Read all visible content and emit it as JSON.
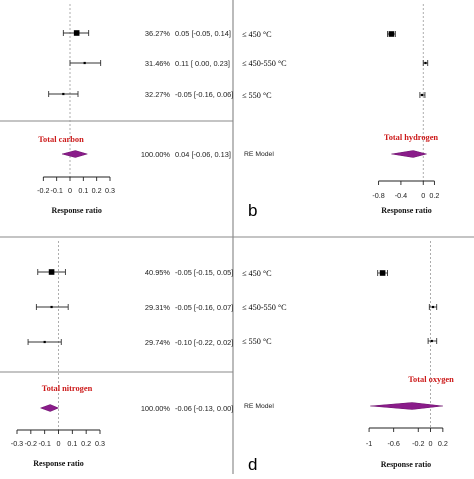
{
  "chart_data": [
    {
      "type": "forest",
      "panel_letter": "",
      "xlim": [
        -0.3,
        0.3
      ],
      "ticks": [
        "-0.2",
        "-0.1",
        "0",
        "0.1",
        "0.2",
        "0.3"
      ],
      "tick_values": [
        -0.2,
        -0.1,
        0,
        0.1,
        0.2,
        0.3
      ],
      "xlabel": "Response ratio",
      "summary_label": "Total carbon",
      "studies": [
        {
          "label": "",
          "est": 0.05,
          "lo": -0.05,
          "hi": 0.14,
          "weight": "36.27%",
          "ci": "0.05 [-0.05, 0.14]"
        },
        {
          "label": "",
          "est": 0.11,
          "lo": 0.0,
          "hi": 0.23,
          "weight": "31.46%",
          "ci": "0.11 [ 0.00, 0.23]"
        },
        {
          "label": "",
          "est": -0.05,
          "lo": -0.16,
          "hi": 0.06,
          "weight": "32.27%",
          "ci": "-0.05 [-0.16, 0.06]"
        }
      ],
      "summary": {
        "label": "",
        "est": 0.04,
        "lo": -0.06,
        "hi": 0.13,
        "weight": "100.00%",
        "ci": "0.04 [-0.06, 0.13]"
      }
    },
    {
      "type": "forest",
      "panel_letter": "b",
      "xlim": [
        -0.9,
        0.3
      ],
      "ticks": [
        "-0.8",
        "-0.4",
        "0",
        "0.2"
      ],
      "tick_values": [
        -0.8,
        -0.4,
        0,
        0.2
      ],
      "xlabel": "Response ratio",
      "summary_label": "Total hydrogen",
      "studies": [
        {
          "label": "≤ 450 °C",
          "est": -0.57,
          "lo": -0.64,
          "hi": -0.5,
          "weight": "",
          "ci": ""
        },
        {
          "label": "≤ 450-550 °C",
          "est": 0.04,
          "lo": 0.0,
          "hi": 0.08,
          "weight": "",
          "ci": ""
        },
        {
          "label": "≤ 550 °C",
          "est": -0.02,
          "lo": -0.06,
          "hi": 0.03,
          "weight": "",
          "ci": ""
        }
      ],
      "summary": {
        "label": "RE Model",
        "est": -0.18,
        "lo": -0.57,
        "hi": 0.06,
        "weight": "",
        "ci": ""
      }
    },
    {
      "type": "forest",
      "panel_letter": "",
      "xlim": [
        -0.3,
        0.3
      ],
      "ticks": [
        "-0.3",
        "-0.2",
        "-0.1",
        "0",
        "0.1",
        "0.2",
        "0.3"
      ],
      "tick_values": [
        -0.3,
        -0.2,
        -0.1,
        0,
        0.1,
        0.2,
        0.3
      ],
      "xlabel": "Response ratio",
      "summary_label": "Total nitrogen",
      "studies": [
        {
          "label": "",
          "est": -0.05,
          "lo": -0.15,
          "hi": 0.05,
          "weight": "40.95%",
          "ci": "-0.05 [-0.15, 0.05]"
        },
        {
          "label": "",
          "est": -0.05,
          "lo": -0.16,
          "hi": 0.07,
          "weight": "29.31%",
          "ci": "-0.05 [-0.16, 0.07]"
        },
        {
          "label": "",
          "est": -0.1,
          "lo": -0.22,
          "hi": 0.02,
          "weight": "29.74%",
          "ci": "-0.10 [-0.22, 0.02]"
        }
      ],
      "summary": {
        "label": "",
        "est": -0.06,
        "lo": -0.13,
        "hi": 0.0,
        "weight": "100.00%",
        "ci": "-0.06 [-0.13, 0.00]"
      }
    },
    {
      "type": "forest",
      "panel_letter": "d",
      "xlim": [
        -1.05,
        0.3
      ],
      "ticks": [
        "-1",
        "-0.6",
        "-0.2",
        "0",
        "0.2"
      ],
      "tick_values": [
        -1,
        -0.6,
        -0.2,
        0,
        0.2
      ],
      "xlabel": "Response ratio",
      "summary_label": "Total oxygen",
      "studies": [
        {
          "label": "≤ 450 °C",
          "est": -0.78,
          "lo": -0.86,
          "hi": -0.7,
          "weight": "",
          "ci": ""
        },
        {
          "label": "≤ 450-550 °C",
          "est": 0.04,
          "lo": -0.02,
          "hi": 0.1,
          "weight": "",
          "ci": ""
        },
        {
          "label": "≤ 550 °C",
          "est": 0.02,
          "lo": -0.04,
          "hi": 0.1,
          "weight": "",
          "ci": ""
        }
      ],
      "summary": {
        "label": "RE Model",
        "est": -0.3,
        "lo": -0.98,
        "hi": 0.2,
        "weight": "",
        "ci": ""
      }
    }
  ]
}
